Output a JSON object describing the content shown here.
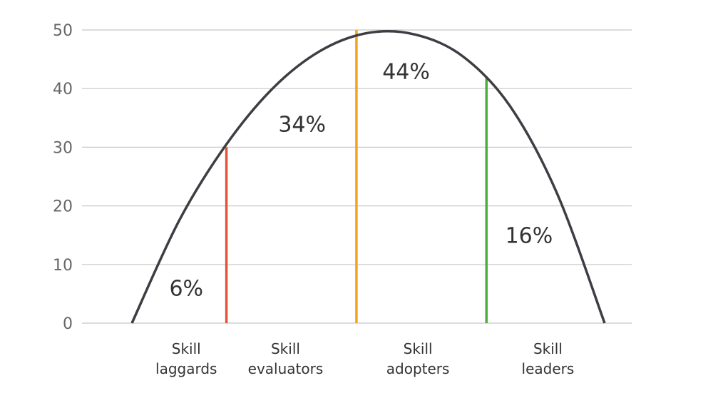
{
  "chart_data": {
    "type": "line",
    "title": "",
    "xlabel": "",
    "ylabel": "",
    "ylim": [
      0,
      50
    ],
    "y_ticks": [
      "0",
      "10",
      "20",
      "30",
      "40",
      "50"
    ],
    "grid": true,
    "curve": {
      "x": [
        0,
        10,
        20,
        30,
        40,
        50,
        60,
        70,
        80,
        90,
        100
      ],
      "y": [
        0,
        17.5,
        30.5,
        40.2,
        46.5,
        49.5,
        49.2,
        45.5,
        37.0,
        22.0,
        0
      ]
    },
    "dividers": [
      {
        "x": 20,
        "y": 30,
        "color": "#e0553a"
      },
      {
        "x": 47.5,
        "y": 50,
        "color": "#f3a31d"
      },
      {
        "x": 75,
        "y": 42,
        "color": "#4caf3a"
      }
    ],
    "segments": [
      {
        "name_line1": "Skill",
        "name_line2": "laggards",
        "percent": "6%",
        "label_x": 11.5,
        "label_y": 6
      },
      {
        "name_line1": "Skill",
        "name_line2": "evaluators",
        "percent": "34%",
        "label_x": 36,
        "label_y": 34
      },
      {
        "name_line1": "Skill",
        "name_line2": "adopters",
        "percent": "44%",
        "label_x": 58,
        "label_y": 43
      },
      {
        "name_line1": "Skill",
        "name_line2": "leaders",
        "percent": "16%",
        "label_x": 84,
        "label_y": 15
      }
    ],
    "category_centers": [
      11.5,
      32.5,
      60.5,
      88
    ]
  }
}
